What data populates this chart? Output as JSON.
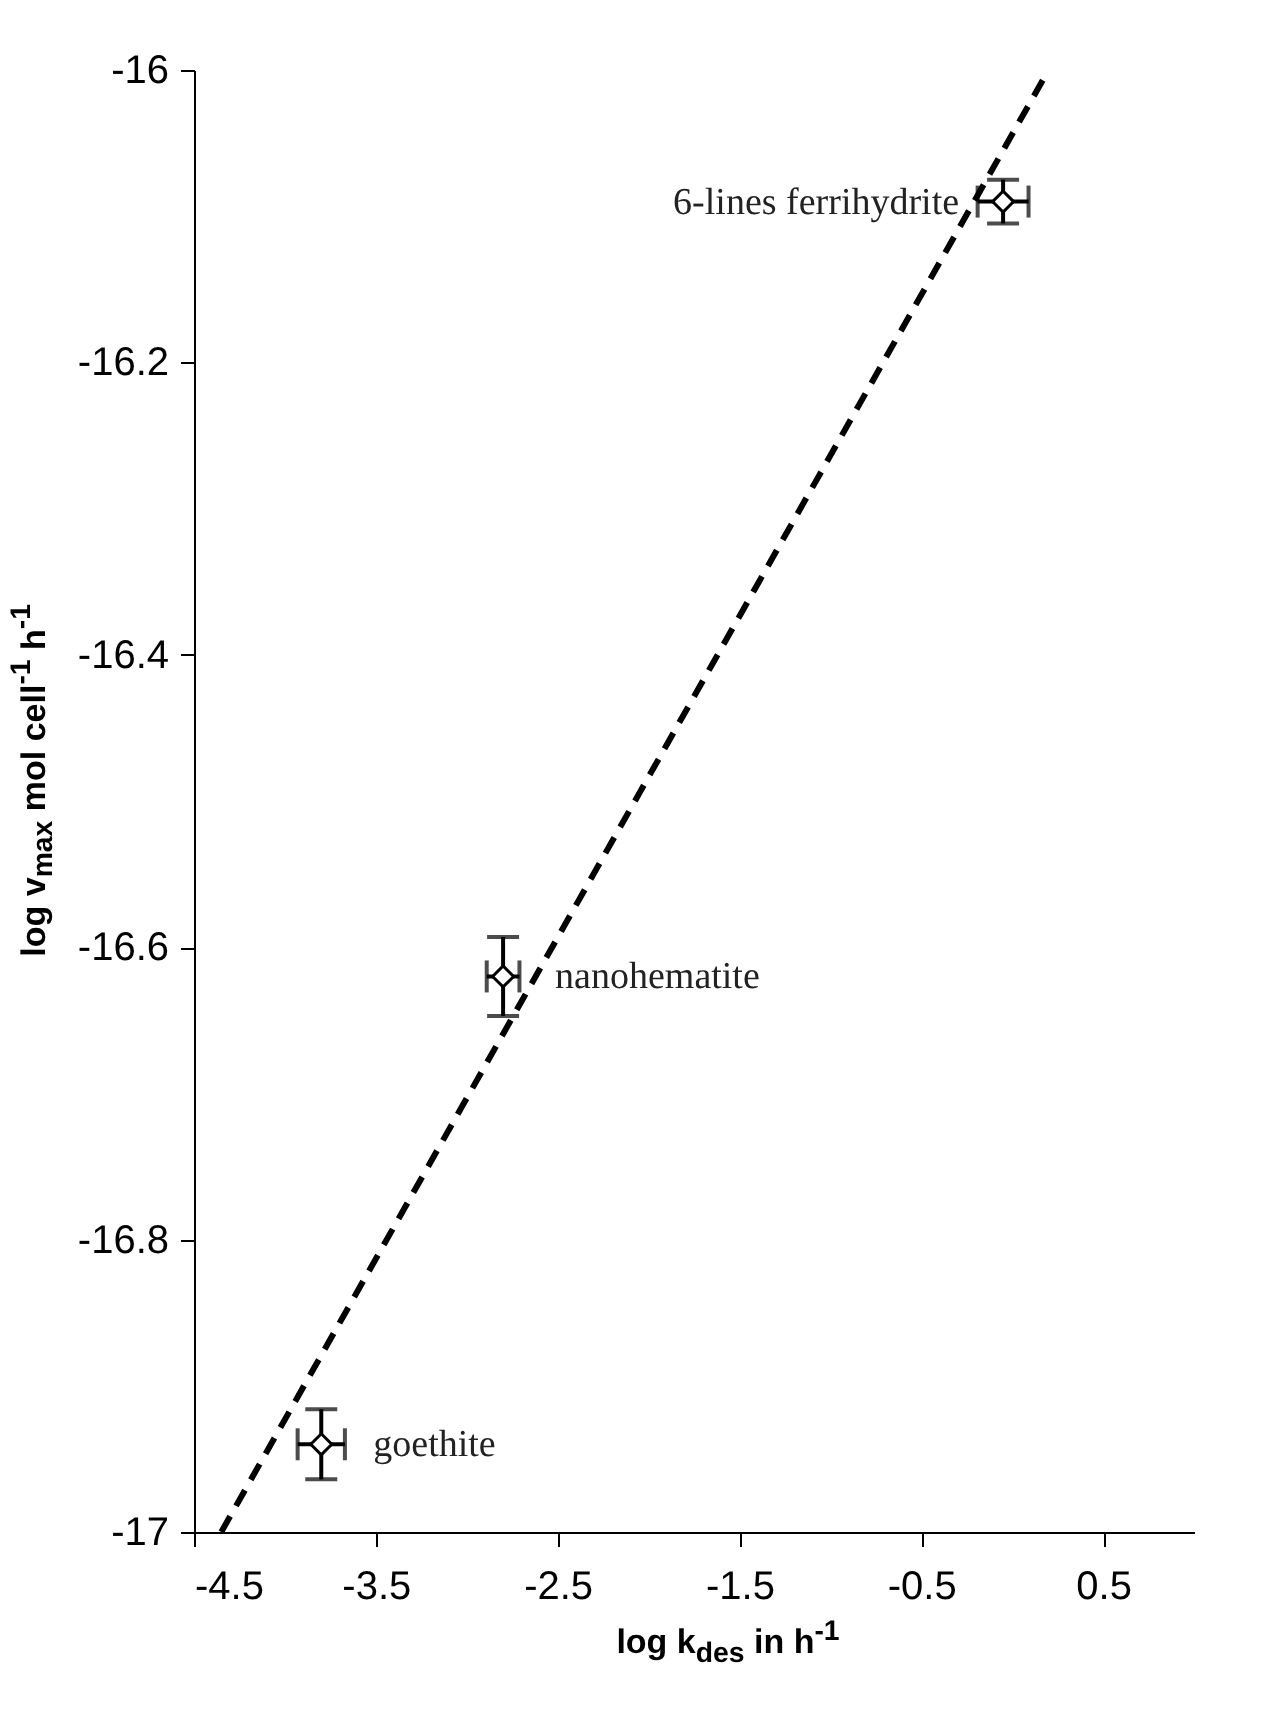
{
  "chart_data": {
    "type": "scatter",
    "xlabel": "log k$_{des}$ in h$^{-1}$",
    "ylabel": "log v$_{max}$ mol cell$^{-1}$ h$^{-1}$",
    "xlim": [
      -4.5,
      1
    ],
    "xticks": [
      -4.5,
      -3.5,
      -2.5,
      -1.5,
      -0.5,
      0.5
    ],
    "ylim": [
      -17,
      -16
    ],
    "yticks": [
      -17,
      -16.8,
      -16.6,
      -16.4,
      -16.2,
      -16
    ],
    "grid": false,
    "series": [
      {
        "type": "scatter",
        "color": "#000000",
        "marker": "diamond",
        "x": [
          -3.8,
          -2.8,
          -0.05
        ],
        "values": [
          -16.94,
          -16.62,
          -16.09
        ],
        "errors": [
          0.024,
          0.027,
          0.015
        ],
        "xerrors": [
          0.13,
          0.09,
          0.14
        ]
      },
      {
        "type": "line",
        "color": "#000000",
        "line_style": "dashed",
        "x": [
          -4.35,
          0.2
        ],
        "values": [
          -17,
          -16
        ]
      }
    ],
    "annotations": [
      {
        "text": "6-lines ferrihydrite",
        "x": -0.05,
        "y": -16.09
      },
      {
        "text": "nanohematite",
        "x": -2.8,
        "y": -16.62
      },
      {
        "text": "goethite",
        "x": -3.8,
        "y": -16.94
      }
    ]
  }
}
